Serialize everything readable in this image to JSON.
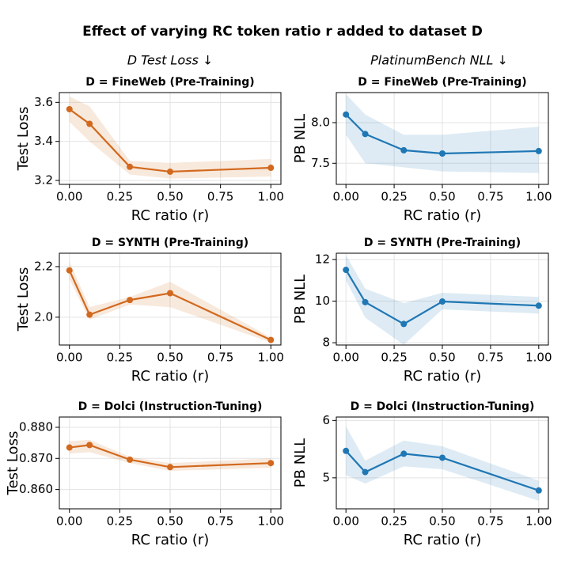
{
  "title": "Effect of varying RC token ratio r added to dataset D",
  "column_titles": [
    {
      "text": "D Test Loss ↓",
      "color": "#cf6d26"
    },
    {
      "text": "PlatinumBench NLL ↓",
      "color": "#2a86c0"
    }
  ],
  "chart_data": [
    {
      "type": "line",
      "title": "D = FineWeb (Pre-Training)",
      "xlabel": "RC ratio (r)",
      "ylabel": "Test Loss",
      "x": [
        0,
        0.1,
        0.3,
        0.5,
        1.0
      ],
      "xlim": [
        -0.05,
        1.05
      ],
      "xticks": [
        {
          "value": 0,
          "label": "0.00"
        },
        {
          "value": 0.25,
          "label": "0.25"
        },
        {
          "value": 0.5,
          "label": "0.50"
        },
        {
          "value": 0.75,
          "label": "0.75"
        },
        {
          "value": 1,
          "label": "1.00"
        }
      ],
      "ylim": [
        3.18,
        3.65
      ],
      "yticks": [
        3.2,
        3.4,
        3.6
      ],
      "grid": true,
      "series": [
        {
          "color": "#d2691e",
          "values": [
            3.565,
            3.49,
            3.27,
            3.245,
            3.265
          ],
          "lower": [
            3.5,
            3.4,
            3.23,
            3.21,
            3.22
          ],
          "upper": [
            3.63,
            3.58,
            3.3,
            3.29,
            3.31
          ]
        }
      ]
    },
    {
      "type": "line",
      "title": "D = FineWeb (Pre-Training)",
      "xlabel": "RC ratio (r)",
      "ylabel": "PB NLL",
      "x": [
        0,
        0.1,
        0.3,
        0.5,
        1.0
      ],
      "xlim": [
        -0.05,
        1.05
      ],
      "xticks": [
        {
          "value": 0,
          "label": "0.00"
        },
        {
          "value": 0.25,
          "label": "0.25"
        },
        {
          "value": 0.5,
          "label": "0.50"
        },
        {
          "value": 0.75,
          "label": "0.75"
        },
        {
          "value": 1,
          "label": "1.00"
        }
      ],
      "ylim": [
        7.24,
        8.37
      ],
      "yticks": [
        7.5,
        {
          "value": 8,
          "label": "8.0"
        }
      ],
      "grid": true,
      "series": [
        {
          "color": "#1f77b4",
          "values": [
            8.1,
            7.86,
            7.66,
            7.62,
            7.65
          ],
          "lower": [
            7.85,
            7.5,
            7.45,
            7.4,
            7.38
          ],
          "upper": [
            8.35,
            8.1,
            7.85,
            7.85,
            7.95
          ]
        }
      ]
    },
    {
      "type": "line",
      "title": "D = SYNTH (Pre-Training)",
      "xlabel": "RC ratio (r)",
      "ylabel": "Test Loss",
      "x": [
        0,
        0.1,
        0.3,
        0.5,
        1.0
      ],
      "xlim": [
        -0.05,
        1.05
      ],
      "xticks": [
        {
          "value": 0,
          "label": "0.00"
        },
        {
          "value": 0.25,
          "label": "0.25"
        },
        {
          "value": 0.5,
          "label": "0.50"
        },
        {
          "value": 0.75,
          "label": "0.75"
        },
        {
          "value": 1,
          "label": "1.00"
        }
      ],
      "ylim": [
        1.89,
        2.253
      ],
      "yticks": [
        {
          "value": 2,
          "label": "2.0"
        },
        2.2
      ],
      "grid": true,
      "series": [
        {
          "color": "#d2691e",
          "values": [
            2.185,
            2.01,
            2.068,
            2.095,
            1.91
          ],
          "lower": [
            2.15,
            1.99,
            2.05,
            2.04,
            1.9
          ],
          "upper": [
            2.22,
            2.04,
            2.08,
            2.14,
            1.92
          ]
        }
      ]
    },
    {
      "type": "line",
      "title": "D = SYNTH (Pre-Training)",
      "xlabel": "RC ratio (r)",
      "ylabel": "PB NLL",
      "x": [
        0,
        0.1,
        0.3,
        0.5,
        1.0
      ],
      "xlim": [
        -0.05,
        1.05
      ],
      "xticks": [
        {
          "value": 0,
          "label": "0.00"
        },
        {
          "value": 0.25,
          "label": "0.25"
        },
        {
          "value": 0.5,
          "label": "0.50"
        },
        {
          "value": 0.75,
          "label": "0.75"
        },
        {
          "value": 1,
          "label": "1.00"
        }
      ],
      "ylim": [
        7.89,
        12.3
      ],
      "yticks": [
        8,
        10,
        12
      ],
      "grid": true,
      "series": [
        {
          "color": "#1f77b4",
          "values": [
            11.5,
            9.95,
            8.9,
            9.98,
            9.78
          ],
          "lower": [
            11.0,
            9.2,
            7.9,
            9.6,
            9.4
          ],
          "upper": [
            12.2,
            10.6,
            9.9,
            10.4,
            10.2
          ]
        }
      ]
    },
    {
      "type": "line",
      "title": "D = Dolci (Instruction-Tuning)",
      "xlabel": "RC ratio (r)",
      "ylabel": "Test Loss",
      "x": [
        0,
        0.1,
        0.3,
        0.5,
        1.0
      ],
      "xlim": [
        -0.05,
        1.05
      ],
      "xticks": [
        {
          "value": 0,
          "label": "0.00"
        },
        {
          "value": 0.25,
          "label": "0.25"
        },
        {
          "value": 0.5,
          "label": "0.50"
        },
        {
          "value": 0.75,
          "label": "0.75"
        },
        {
          "value": 1,
          "label": "1.00"
        }
      ],
      "ylim": [
        0.8538,
        0.8833
      ],
      "yticks": [
        {
          "value": 0.86,
          "label": "0.860"
        },
        {
          "value": 0.87,
          "label": "0.870"
        },
        {
          "value": 0.88,
          "label": "0.880"
        }
      ],
      "grid": true,
      "series": [
        {
          "color": "#d2691e",
          "values": [
            0.8735,
            0.8743,
            0.8696,
            0.8672,
            0.8685
          ],
          "lower": [
            0.8715,
            0.872,
            0.8685,
            0.866,
            0.867
          ],
          "upper": [
            0.8755,
            0.876,
            0.8705,
            0.8685,
            0.87
          ]
        }
      ]
    },
    {
      "type": "line",
      "title": "D = Dolci (Instruction-Tuning)",
      "xlabel": "RC ratio (r)",
      "ylabel": "PB NLL",
      "x": [
        0,
        0.1,
        0.3,
        0.5,
        1.0
      ],
      "xlim": [
        -0.05,
        1.05
      ],
      "xticks": [
        {
          "value": 0,
          "label": "0.00"
        },
        {
          "value": 0.25,
          "label": "0.25"
        },
        {
          "value": 0.5,
          "label": "0.50"
        },
        {
          "value": 0.75,
          "label": "0.75"
        },
        {
          "value": 1,
          "label": "1.00"
        }
      ],
      "ylim": [
        4.46,
        6.06
      ],
      "yticks": [
        5,
        6
      ],
      "grid": true,
      "series": [
        {
          "color": "#1f77b4",
          "values": [
            5.47,
            5.1,
            5.42,
            5.35,
            4.78
          ],
          "lower": [
            5.05,
            4.9,
            5.2,
            5.15,
            4.6
          ],
          "upper": [
            5.9,
            5.3,
            5.65,
            5.55,
            4.95
          ]
        }
      ]
    }
  ]
}
